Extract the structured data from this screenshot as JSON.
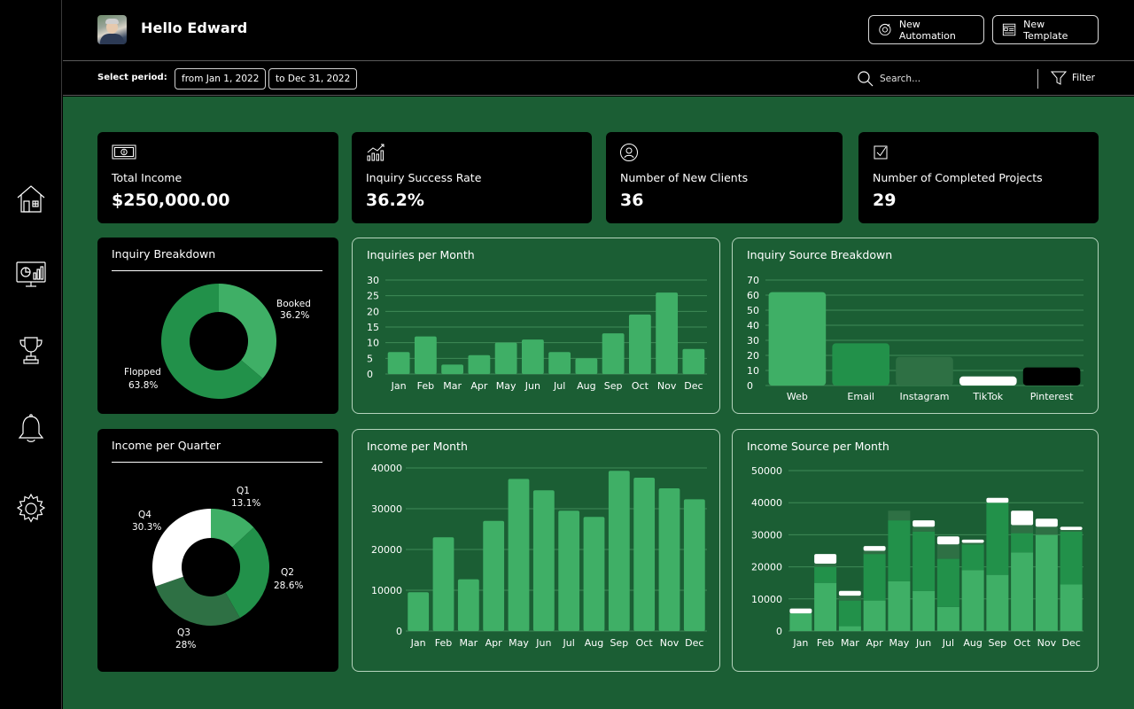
{
  "header": {
    "greeting": "Hello Edward",
    "buttons": {
      "automation": "New Automation",
      "template": "New Template"
    }
  },
  "period_bar": {
    "label": "Select period:",
    "from": "from Jan 1, 2022",
    "to": "to Dec 31, 2022",
    "search_placeholder": "Search...",
    "filter": "Filter"
  },
  "sidebar": {
    "items": [
      "home-icon",
      "dashboard-icon",
      "trophy-icon",
      "bell-icon",
      "gear-icon"
    ]
  },
  "stats": [
    {
      "icon": "money-icon",
      "label": "Total Income",
      "value": "$250,000.00"
    },
    {
      "icon": "growth-chart-icon",
      "label": "Inquiry Success Rate",
      "value": "36.2%"
    },
    {
      "icon": "user-icon",
      "label": "Number of New Clients",
      "value": "36"
    },
    {
      "icon": "checkbox-icon",
      "label": "Number of Completed Projects",
      "value": "29"
    }
  ],
  "panels": {
    "inquiry_breakdown": "Inquiry Breakdown",
    "inquiries_per_month": "Inquiries per Month",
    "inquiry_source": "Inquiry Source Breakdown",
    "income_per_quarter": "Income per Quarter",
    "income_per_month": "Income per Month",
    "income_source_per_month": "Income Source per Month"
  },
  "colors": {
    "bg_green": "#1b5e34",
    "bar_light": "#3faf66",
    "bar_mid": "#22914a",
    "bar_dark": "#2e7044",
    "grid": "#3f8a57",
    "white": "#ffffff"
  },
  "chart_data": [
    {
      "type": "pie",
      "labels": [
        "Booked",
        "Flopped"
      ],
      "values": [
        36.2,
        63.8
      ],
      "label_text": [
        "36.2%",
        "63.8%"
      ],
      "colors": [
        "#3faf66",
        "#22914a"
      ]
    },
    {
      "type": "bar",
      "categories": [
        "Jan",
        "Feb",
        "Mar",
        "Apr",
        "May",
        "Jun",
        "Jul",
        "Aug",
        "Sep",
        "Oct",
        "Nov",
        "Dec"
      ],
      "values": [
        7,
        12,
        3,
        6,
        10,
        11,
        7,
        5,
        13,
        19,
        26,
        8
      ],
      "ylim": [
        0,
        30
      ],
      "yticks": [
        0,
        5,
        10,
        15,
        20,
        25,
        30
      ]
    },
    {
      "type": "bar",
      "categories": [
        "Web",
        "Email",
        "Instagram",
        "TikTok",
        "Pinterest"
      ],
      "values": [
        62,
        28,
        19,
        6,
        12
      ],
      "colors": [
        "#3faf66",
        "#22914a",
        "#2e7044",
        "#ffffff",
        "#000000"
      ],
      "ylim": [
        0,
        70
      ],
      "yticks": [
        0,
        10,
        20,
        30,
        40,
        50,
        60,
        70
      ]
    },
    {
      "type": "pie",
      "labels": [
        "Q1",
        "Q2",
        "Q3",
        "Q4"
      ],
      "values": [
        13.1,
        28.6,
        28,
        30.3
      ],
      "label_text": [
        "13.1%",
        "28.6%",
        "28%",
        "30.3%"
      ],
      "colors": [
        "#3faf66",
        "#22914a",
        "#2e7044",
        "#ffffff"
      ]
    },
    {
      "type": "bar",
      "categories": [
        "Jan",
        "Feb",
        "Mar",
        "Apr",
        "May",
        "Jun",
        "Jul",
        "Aug",
        "Sep",
        "Oct",
        "Nov",
        "Dec"
      ],
      "values": [
        9500,
        23000,
        12700,
        27000,
        37300,
        34500,
        29500,
        28000,
        39300,
        37600,
        35000,
        32300
      ],
      "ylim": [
        0,
        40000
      ],
      "yticks": [
        0,
        10000,
        20000,
        30000,
        40000
      ]
    },
    {
      "type": "bar",
      "stacked": true,
      "categories": [
        "Jan",
        "Feb",
        "Mar",
        "Apr",
        "May",
        "Jun",
        "Jul",
        "Aug",
        "Sep",
        "Oct",
        "Nov",
        "Dec"
      ],
      "series": [
        {
          "values": [
            5500,
            15000,
            1500,
            9500,
            15500,
            12500,
            7500,
            19000,
            17500,
            24500,
            30000,
            14500
          ],
          "color": "#3faf66"
        },
        {
          "values": [
            0,
            5000,
            8000,
            14500,
            19000,
            18500,
            15000,
            8000,
            22500,
            6000,
            0,
            16500
          ],
          "color": "#22914a"
        },
        {
          "values": [
            0,
            1000,
            1500,
            1000,
            3000,
            1500,
            4500,
            500,
            0,
            2500,
            2500,
            500
          ],
          "color": "#2e7044"
        },
        {
          "values": [
            1500,
            3000,
            1500,
            1500,
            0,
            2000,
            2500,
            1000,
            1500,
            4500,
            2500,
            1000
          ],
          "color": "#ffffff"
        }
      ],
      "ylim": [
        0,
        50000
      ],
      "yticks": [
        0,
        10000,
        20000,
        30000,
        40000,
        50000
      ]
    }
  ]
}
